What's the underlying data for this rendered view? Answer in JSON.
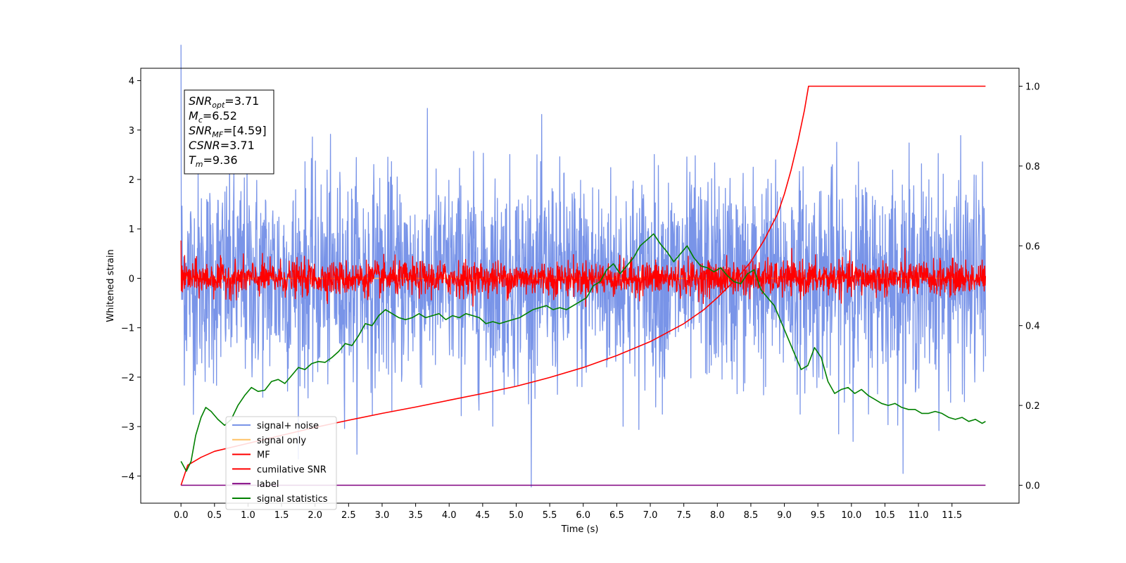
{
  "chart_data": {
    "type": "line",
    "xlabel": "Time (s)",
    "ylabel": "Whitened strain",
    "xlim": [
      -0.6,
      12.5
    ],
    "ylim": [
      -4.55,
      4.25
    ],
    "y2lim": [
      -0.045,
      1.045
    ],
    "xticks": [
      0.0,
      0.5,
      1.0,
      1.5,
      2.0,
      2.5,
      3.0,
      3.5,
      4.0,
      4.5,
      5.0,
      5.5,
      6.0,
      6.5,
      7.0,
      7.5,
      8.0,
      8.5,
      9.0,
      9.5,
      10.0,
      10.5,
      11.0,
      11.5
    ],
    "xtick_labels": [
      "0.0",
      "0.5",
      "1.0",
      "1.5",
      "2.0",
      "2.5",
      "3.0",
      "3.5",
      "4.0",
      "4.5",
      "5.0",
      "5.5",
      "6.0",
      "6.5",
      "7.0",
      "7.5",
      "8.0",
      "8.5",
      "9.0",
      "9.5",
      "10.0",
      "10.5",
      "11.0",
      "11.5"
    ],
    "yticks": [
      -4,
      -3,
      -2,
      -1,
      0,
      1,
      2,
      3,
      4
    ],
    "ytick_labels": [
      "−4",
      "−3",
      "−2",
      "−1",
      "0",
      "1",
      "2",
      "3",
      "4"
    ],
    "y2ticks": [
      0.0,
      0.2,
      0.4,
      0.6,
      0.8,
      1.0
    ],
    "y2tick_labels": [
      "0.0",
      "0.2",
      "0.4",
      "0.6",
      "0.8",
      "1.0"
    ],
    "grid": false,
    "legend_position": "lower-left",
    "series": [
      {
        "name": "signal+ noise",
        "color": "#7994e8",
        "axis": "left",
        "kind": "noise",
        "x_range": [
          0,
          12.0
        ],
        "center": 0.0,
        "std": 1.05,
        "points": 2400
      },
      {
        "name": "signal only",
        "color": "#ffc266",
        "axis": "left",
        "kind": "flat",
        "x_range": [
          0,
          12.0
        ],
        "value": 0.0
      },
      {
        "name": "MF",
        "color": "#ff0000",
        "axis": "left",
        "kind": "noise",
        "x_range": [
          0,
          12.0
        ],
        "center": 0.0,
        "std": 0.17,
        "points": 2400
      },
      {
        "name": "cumilative SNR",
        "color": "#ff0000",
        "axis": "right",
        "x": [
          0.0,
          0.1,
          0.3,
          0.5,
          1.0,
          1.5,
          2.0,
          2.5,
          3.0,
          3.5,
          4.0,
          4.5,
          5.0,
          5.5,
          6.0,
          6.5,
          7.0,
          7.5,
          7.8,
          8.0,
          8.3,
          8.5,
          8.7,
          8.9,
          9.0,
          9.1,
          9.2,
          9.3,
          9.36,
          10.0,
          11.0,
          12.0
        ],
        "y": [
          0.0,
          0.05,
          0.07,
          0.085,
          0.105,
          0.125,
          0.145,
          0.163,
          0.18,
          0.196,
          0.213,
          0.23,
          0.248,
          0.27,
          0.295,
          0.325,
          0.36,
          0.405,
          0.44,
          0.47,
          0.52,
          0.56,
          0.615,
          0.68,
          0.73,
          0.79,
          0.86,
          0.94,
          1.0,
          1.0,
          1.0,
          1.0
        ]
      },
      {
        "name": "label",
        "color": "#800080",
        "axis": "right",
        "kind": "flat",
        "x_range": [
          0,
          12.0
        ],
        "value": 0.0
      },
      {
        "name": "signal statistics",
        "color": "#008000",
        "axis": "right",
        "x": [
          0.0,
          0.08,
          0.15,
          0.22,
          0.3,
          0.37,
          0.45,
          0.55,
          0.65,
          0.75,
          0.85,
          0.95,
          1.05,
          1.15,
          1.25,
          1.35,
          1.45,
          1.55,
          1.65,
          1.75,
          1.85,
          1.95,
          2.05,
          2.15,
          2.25,
          2.35,
          2.45,
          2.55,
          2.65,
          2.75,
          2.85,
          2.95,
          3.05,
          3.15,
          3.25,
          3.35,
          3.45,
          3.55,
          3.65,
          3.75,
          3.85,
          3.95,
          4.05,
          4.15,
          4.25,
          4.35,
          4.45,
          4.55,
          4.65,
          4.75,
          4.85,
          4.95,
          5.05,
          5.15,
          5.25,
          5.35,
          5.45,
          5.55,
          5.65,
          5.75,
          5.85,
          5.95,
          6.05,
          6.15,
          6.25,
          6.35,
          6.45,
          6.55,
          6.65,
          6.75,
          6.85,
          6.95,
          7.05,
          7.15,
          7.25,
          7.35,
          7.45,
          7.55,
          7.65,
          7.75,
          7.85,
          7.95,
          8.05,
          8.15,
          8.25,
          8.35,
          8.45,
          8.55,
          8.65,
          8.75,
          8.85,
          8.95,
          9.05,
          9.15,
          9.25,
          9.35,
          9.45,
          9.55,
          9.65,
          9.75,
          9.85,
          9.95,
          10.05,
          10.15,
          10.25,
          10.35,
          10.45,
          10.55,
          10.65,
          10.75,
          10.85,
          10.95,
          11.05,
          11.15,
          11.25,
          11.35,
          11.45,
          11.55,
          11.65,
          11.75,
          11.85,
          11.95,
          12.0
        ],
        "y": [
          0.06,
          0.035,
          0.06,
          0.125,
          0.17,
          0.195,
          0.185,
          0.165,
          0.15,
          0.165,
          0.2,
          0.225,
          0.245,
          0.235,
          0.238,
          0.26,
          0.265,
          0.255,
          0.275,
          0.295,
          0.29,
          0.305,
          0.31,
          0.308,
          0.32,
          0.335,
          0.355,
          0.35,
          0.375,
          0.405,
          0.4,
          0.425,
          0.44,
          0.43,
          0.42,
          0.415,
          0.42,
          0.43,
          0.42,
          0.425,
          0.43,
          0.415,
          0.425,
          0.42,
          0.43,
          0.425,
          0.42,
          0.405,
          0.41,
          0.405,
          0.41,
          0.415,
          0.42,
          0.43,
          0.44,
          0.445,
          0.45,
          0.44,
          0.445,
          0.44,
          0.45,
          0.46,
          0.47,
          0.5,
          0.51,
          0.54,
          0.555,
          0.53,
          0.55,
          0.57,
          0.6,
          0.615,
          0.63,
          0.605,
          0.585,
          0.56,
          0.58,
          0.6,
          0.57,
          0.55,
          0.545,
          0.535,
          0.545,
          0.525,
          0.51,
          0.505,
          0.53,
          0.54,
          0.49,
          0.47,
          0.45,
          0.41,
          0.37,
          0.33,
          0.29,
          0.3,
          0.345,
          0.32,
          0.26,
          0.23,
          0.24,
          0.245,
          0.23,
          0.24,
          0.225,
          0.215,
          0.205,
          0.2,
          0.205,
          0.195,
          0.19,
          0.19,
          0.18,
          0.18,
          0.185,
          0.18,
          0.17,
          0.165,
          0.17,
          0.16,
          0.165,
          0.155,
          0.16
        ]
      }
    ],
    "annotation": {
      "lines": [
        {
          "base": "SNR",
          "sub": "opt",
          "value": "=3.71"
        },
        {
          "base": "M",
          "sub": "c",
          "value": "=6.52"
        },
        {
          "base": "SNR",
          "sub": "MF",
          "value": "=[4.59]"
        },
        {
          "base": "CSNR",
          "sub": "",
          "value": "=3.71"
        },
        {
          "base": "T",
          "sub": "m",
          "value": "=9.36"
        }
      ]
    }
  }
}
